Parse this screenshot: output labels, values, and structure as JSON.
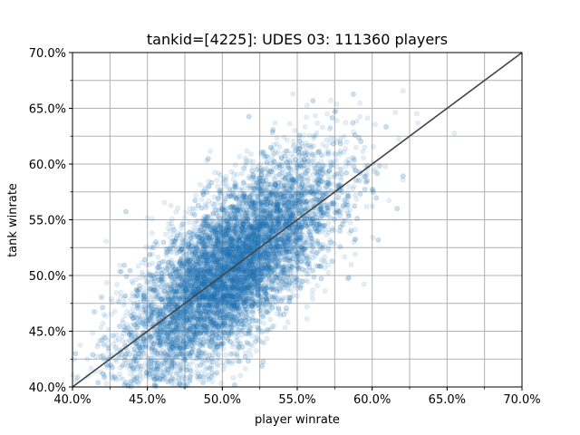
{
  "chart_data": {
    "type": "scatter",
    "title": "tankid=[4225]: UDES 03: 111360 players",
    "xlabel": "player winrate",
    "ylabel": "tank winrate",
    "xlim": [
      0.4,
      0.7
    ],
    "ylim": [
      0.4,
      0.7
    ],
    "x_ticks": [
      0.4,
      0.45,
      0.5,
      0.55,
      0.6,
      0.65,
      0.7
    ],
    "y_ticks": [
      0.4,
      0.45,
      0.5,
      0.55,
      0.6,
      0.65,
      0.7
    ],
    "x_tick_labels": [
      "40.0%",
      "45.0%",
      "50.0%",
      "55.0%",
      "60.0%",
      "65.0%",
      "70.0%"
    ],
    "y_tick_labels": [
      "40.0%",
      "45.0%",
      "50.0%",
      "55.0%",
      "60.0%",
      "65.0%",
      "70.0%"
    ],
    "grid": true,
    "grid_minor_step": 0.025,
    "point_color": "#1f77b4",
    "point_alpha": 0.12,
    "n_points": 111360,
    "distribution": {
      "player_winrate_mean": 0.505,
      "player_winrate_sd": 0.035,
      "tank_winrate_mean": 0.505,
      "tank_winrate_sd": 0.05,
      "correlation": 0.72
    },
    "reference_line": {
      "from": [
        0.4,
        0.4
      ],
      "to": [
        0.7,
        0.7
      ],
      "color": "#444444"
    }
  }
}
